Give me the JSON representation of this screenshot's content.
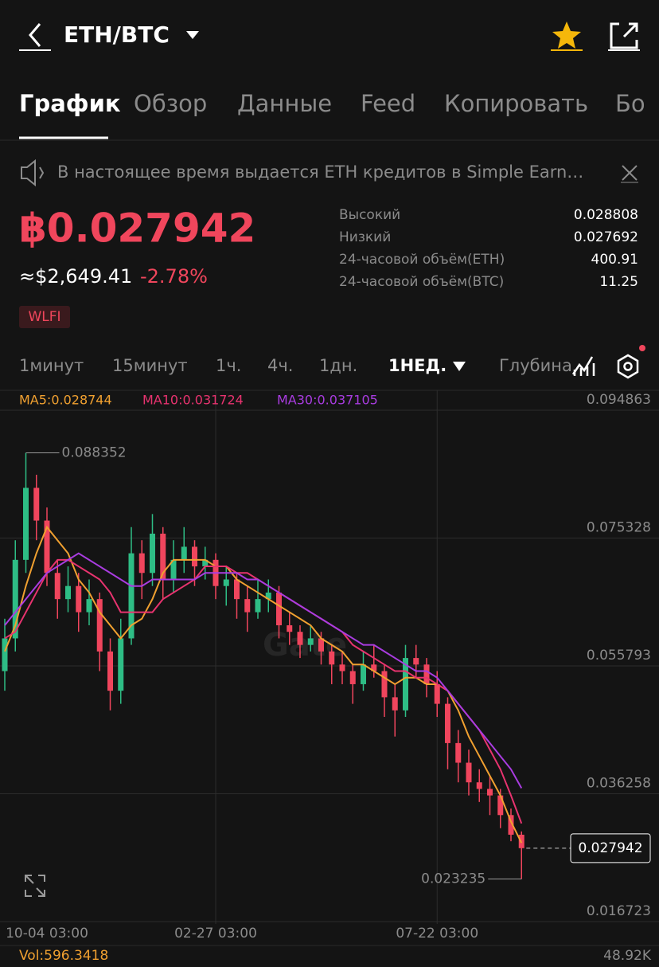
{
  "header": {
    "pair": "ETH/BTC"
  },
  "tabs": [
    "График",
    "Обзор",
    "Данные",
    "Feed",
    "Копировать",
    "Бо"
  ],
  "notice": "В настоящее время выдается ETH кредитов в Simple Earn…",
  "ticker": {
    "price": "฿0.027942",
    "usd": "≈$2,649.41",
    "change": "-2.78%",
    "tag": "WLFI"
  },
  "stats": [
    {
      "label": "Высокий",
      "value": 0.028808
    },
    {
      "label": "Низкий",
      "value": 0.027692
    },
    {
      "label": "24-часовой объём(ETH)",
      "value": 400.91
    },
    {
      "label": "24-часовой объём(BTC)",
      "value": 11.25
    }
  ],
  "timeframes": [
    "1минут",
    "15минут",
    "1ч.",
    "4ч.",
    "1дн.",
    "1НЕД.",
    "Глубина"
  ],
  "chart_data": {
    "type": "candlestick",
    "ylim": [
      0.016723,
      0.094863
    ],
    "yticks": [
      0.016723,
      0.036258,
      0.055793,
      0.075328,
      0.094863
    ],
    "up_color": "#2ebd85",
    "down_color": "#f0455d",
    "categories": [
      null,
      null,
      null,
      null,
      "10-04 03:00",
      null,
      null,
      null,
      null,
      null,
      null,
      null,
      null,
      null,
      null,
      null,
      null,
      null,
      null,
      null,
      "02-27 03:00",
      null,
      null,
      null,
      null,
      null,
      null,
      null,
      null,
      null,
      null,
      null,
      null,
      null,
      null,
      null,
      null,
      null,
      null,
      null,
      null,
      "07-22 03:00",
      null,
      null,
      null,
      null,
      null,
      null,
      null,
      null
    ],
    "candles": [
      {
        "open": 0.055,
        "high": 0.063,
        "low": 0.052,
        "close": 0.06
      },
      {
        "open": 0.06,
        "high": 0.075,
        "low": 0.058,
        "close": 0.072
      },
      {
        "open": 0.072,
        "high": 0.088352,
        "low": 0.07,
        "close": 0.083
      },
      {
        "open": 0.083,
        "high": 0.085,
        "low": 0.075,
        "close": 0.078
      },
      {
        "open": 0.078,
        "high": 0.08,
        "low": 0.068,
        "close": 0.07
      },
      {
        "open": 0.07,
        "high": 0.072,
        "low": 0.063,
        "close": 0.066
      },
      {
        "open": 0.066,
        "high": 0.071,
        "low": 0.064,
        "close": 0.068
      },
      {
        "open": 0.068,
        "high": 0.07,
        "low": 0.061,
        "close": 0.064
      },
      {
        "open": 0.064,
        "high": 0.069,
        "low": 0.062,
        "close": 0.066
      },
      {
        "open": 0.066,
        "high": 0.067,
        "low": 0.055,
        "close": 0.058
      },
      {
        "open": 0.058,
        "high": 0.06,
        "low": 0.049,
        "close": 0.052
      },
      {
        "open": 0.052,
        "high": 0.063,
        "low": 0.05,
        "close": 0.06
      },
      {
        "open": 0.06,
        "high": 0.077,
        "low": 0.059,
        "close": 0.073
      },
      {
        "open": 0.073,
        "high": 0.075,
        "low": 0.066,
        "close": 0.07
      },
      {
        "open": 0.07,
        "high": 0.079,
        "low": 0.068,
        "close": 0.076
      },
      {
        "open": 0.076,
        "high": 0.077,
        "low": 0.066,
        "close": 0.069
      },
      {
        "open": 0.069,
        "high": 0.075,
        "low": 0.067,
        "close": 0.072
      },
      {
        "open": 0.072,
        "high": 0.077,
        "low": 0.07,
        "close": 0.074
      },
      {
        "open": 0.074,
        "high": 0.075,
        "low": 0.068,
        "close": 0.071
      },
      {
        "open": 0.071,
        "high": 0.074,
        "low": 0.069,
        "close": 0.072
      },
      {
        "open": 0.072,
        "high": 0.073,
        "low": 0.066,
        "close": 0.068
      },
      {
        "open": 0.068,
        "high": 0.071,
        "low": 0.065,
        "close": 0.069
      },
      {
        "open": 0.069,
        "high": 0.07,
        "low": 0.063,
        "close": 0.066
      },
      {
        "open": 0.066,
        "high": 0.068,
        "low": 0.061,
        "close": 0.064
      },
      {
        "open": 0.064,
        "high": 0.069,
        "low": 0.063,
        "close": 0.066
      },
      {
        "open": 0.066,
        "high": 0.069,
        "low": 0.064,
        "close": 0.067
      },
      {
        "open": 0.067,
        "high": 0.068,
        "low": 0.06,
        "close": 0.062
      },
      {
        "open": 0.062,
        "high": 0.064,
        "low": 0.059,
        "close": 0.061
      },
      {
        "open": 0.061,
        "high": 0.062,
        "low": 0.057,
        "close": 0.059
      },
      {
        "open": 0.059,
        "high": 0.062,
        "low": 0.058,
        "close": 0.06
      },
      {
        "open": 0.06,
        "high": 0.061,
        "low": 0.056,
        "close": 0.058
      },
      {
        "open": 0.058,
        "high": 0.059,
        "low": 0.053,
        "close": 0.056
      },
      {
        "open": 0.056,
        "high": 0.058,
        "low": 0.053,
        "close": 0.055
      },
      {
        "open": 0.055,
        "high": 0.056,
        "low": 0.05,
        "close": 0.053
      },
      {
        "open": 0.053,
        "high": 0.058,
        "low": 0.052,
        "close": 0.056
      },
      {
        "open": 0.056,
        "high": 0.059,
        "low": 0.054,
        "close": 0.055
      },
      {
        "open": 0.055,
        "high": 0.056,
        "low": 0.048,
        "close": 0.051
      },
      {
        "open": 0.051,
        "high": 0.053,
        "low": 0.045,
        "close": 0.049
      },
      {
        "open": 0.049,
        "high": 0.059,
        "low": 0.048,
        "close": 0.057
      },
      {
        "open": 0.057,
        "high": 0.059,
        "low": 0.054,
        "close": 0.056
      },
      {
        "open": 0.056,
        "high": 0.057,
        "low": 0.051,
        "close": 0.053
      },
      {
        "open": 0.053,
        "high": 0.055,
        "low": 0.048,
        "close": 0.05
      },
      {
        "open": 0.05,
        "high": 0.051,
        "low": 0.04,
        "close": 0.044
      },
      {
        "open": 0.044,
        "high": 0.046,
        "low": 0.038,
        "close": 0.041
      },
      {
        "open": 0.041,
        "high": 0.043,
        "low": 0.036,
        "close": 0.038
      },
      {
        "open": 0.038,
        "high": 0.04,
        "low": 0.035,
        "close": 0.037
      },
      {
        "open": 0.037,
        "high": 0.039,
        "low": 0.033,
        "close": 0.036
      },
      {
        "open": 0.036,
        "high": 0.037,
        "low": 0.031,
        "close": 0.033
      },
      {
        "open": 0.033,
        "high": 0.034,
        "low": 0.029,
        "close": 0.03
      },
      {
        "open": 0.03,
        "high": 0.0305,
        "low": 0.023235,
        "close": 0.027942
      }
    ],
    "series": [
      {
        "name": "MA5:0.028744",
        "color": "#f0a030",
        "values": [
          0.058,
          0.062,
          0.068,
          0.073,
          0.077,
          0.075,
          0.073,
          0.069,
          0.067,
          0.064,
          0.062,
          0.06,
          0.062,
          0.063,
          0.066,
          0.07,
          0.072,
          0.072,
          0.072,
          0.072,
          0.071,
          0.071,
          0.069,
          0.068,
          0.067,
          0.066,
          0.065,
          0.064,
          0.063,
          0.062,
          0.06,
          0.059,
          0.058,
          0.056,
          0.056,
          0.055,
          0.054,
          0.053,
          0.054,
          0.054,
          0.053,
          0.053,
          0.052,
          0.049,
          0.045,
          0.042,
          0.039,
          0.036,
          0.032,
          0.028744
        ]
      },
      {
        "name": "MA10:0.031724",
        "color": "#e8336f",
        "values": [
          0.06,
          0.061,
          0.064,
          0.067,
          0.07,
          0.072,
          0.072,
          0.071,
          0.07,
          0.069,
          0.067,
          0.064,
          0.064,
          0.064,
          0.064,
          0.066,
          0.067,
          0.068,
          0.069,
          0.071,
          0.071,
          0.071,
          0.07,
          0.07,
          0.069,
          0.068,
          0.067,
          0.066,
          0.065,
          0.064,
          0.063,
          0.062,
          0.061,
          0.059,
          0.058,
          0.057,
          0.056,
          0.055,
          0.055,
          0.054,
          0.054,
          0.053,
          0.052,
          0.05,
          0.048,
          0.046,
          0.043,
          0.04,
          0.036,
          0.031724
        ]
      },
      {
        "name": "MA30:0.037105",
        "color": "#a93ce0",
        "values": [
          0.062,
          0.064,
          0.066,
          0.068,
          0.07,
          0.071,
          0.072,
          0.073,
          0.072,
          0.071,
          0.07,
          0.069,
          0.068,
          0.068,
          0.069,
          0.069,
          0.069,
          0.069,
          0.069,
          0.07,
          0.07,
          0.07,
          0.07,
          0.069,
          0.069,
          0.068,
          0.067,
          0.066,
          0.065,
          0.064,
          0.063,
          0.062,
          0.061,
          0.06,
          0.059,
          0.059,
          0.058,
          0.057,
          0.056,
          0.055,
          0.055,
          0.054,
          0.052,
          0.05,
          0.048,
          0.046,
          0.044,
          0.042,
          0.04,
          0.037105
        ]
      }
    ]
  },
  "volume": {
    "label": "Vol:596.3418",
    "max": "48.92K"
  }
}
